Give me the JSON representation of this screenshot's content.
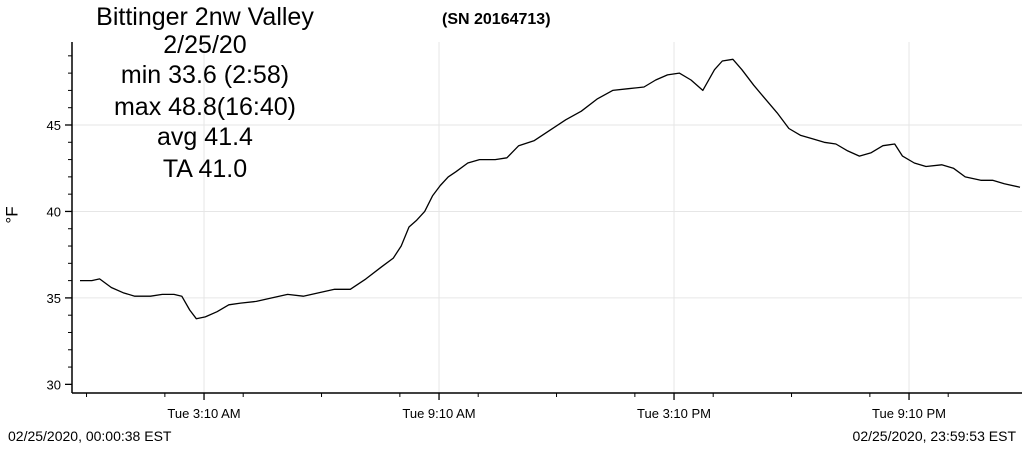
{
  "title_lines": [
    "Bittinger 2nw Valley",
    "2/25/20",
    "min 33.6 (2:58)",
    "max 48.8(16:40)",
    "avg  41.4",
    "TA  41.0"
  ],
  "serial": "(SN 20164713)",
  "footer": {
    "start": "02/25/2020, 00:00:38 EST",
    "end": "02/25/2020, 23:59:53 EST"
  },
  "chart_data": {
    "type": "line",
    "ylabel": "°F",
    "xlabel": "",
    "ylim": [
      29.5,
      49.8
    ],
    "xlim_hours": [
      0,
      24
    ],
    "y_ticks": [
      30,
      35,
      40,
      45
    ],
    "x_ticks": [
      {
        "hour": 3.1667,
        "label": "Tue 3:10 AM"
      },
      {
        "hour": 9.1667,
        "label": "Tue 9:10 AM"
      },
      {
        "hour": 15.1667,
        "label": "Tue 3:10 PM"
      },
      {
        "hour": 21.1667,
        "label": "Tue 9:10 PM"
      }
    ],
    "grid": true,
    "legend": "none",
    "line_color": "#000000",
    "series": [
      {
        "x_hours": [
          0.0,
          0.3,
          0.5,
          0.8,
          1.1,
          1.4,
          1.8,
          2.1,
          2.4,
          2.6,
          2.8,
          2.97,
          3.2,
          3.5,
          3.8,
          4.1,
          4.5,
          4.9,
          5.3,
          5.7,
          6.1,
          6.5,
          6.9,
          7.3,
          7.7,
          8.0,
          8.2,
          8.4,
          8.6,
          8.8,
          9.0,
          9.2,
          9.4,
          9.6,
          9.9,
          10.2,
          10.6,
          10.9,
          11.2,
          11.6,
          12.0,
          12.4,
          12.8,
          13.2,
          13.6,
          14.0,
          14.4,
          14.7,
          15.0,
          15.3,
          15.6,
          15.9,
          16.2,
          16.4,
          16.67,
          16.9,
          17.2,
          17.5,
          17.8,
          18.1,
          18.4,
          18.7,
          19.0,
          19.3,
          19.6,
          19.9,
          20.2,
          20.5,
          20.8,
          21.0,
          21.3,
          21.6,
          22.0,
          22.3,
          22.6,
          23.0,
          23.3,
          23.6,
          24.0
        ],
        "values": [
          36.0,
          36.0,
          36.1,
          35.6,
          35.3,
          35.1,
          35.1,
          35.2,
          35.2,
          35.1,
          34.3,
          33.8,
          33.9,
          34.2,
          34.6,
          34.7,
          34.8,
          35.0,
          35.2,
          35.1,
          35.3,
          35.5,
          35.5,
          36.1,
          36.8,
          37.3,
          38.0,
          39.1,
          39.5,
          40.0,
          40.9,
          41.5,
          42.0,
          42.3,
          42.8,
          43.0,
          43.0,
          43.1,
          43.8,
          44.1,
          44.7,
          45.3,
          45.8,
          46.5,
          47.0,
          47.1,
          47.2,
          47.6,
          47.9,
          48.0,
          47.6,
          47.0,
          48.2,
          48.7,
          48.8,
          48.2,
          47.3,
          46.5,
          45.7,
          44.8,
          44.4,
          44.2,
          44.0,
          43.9,
          43.5,
          43.2,
          43.4,
          43.8,
          43.9,
          43.2,
          42.8,
          42.6,
          42.7,
          42.5,
          42.0,
          41.8,
          41.8,
          41.6,
          41.4
        ]
      }
    ]
  }
}
